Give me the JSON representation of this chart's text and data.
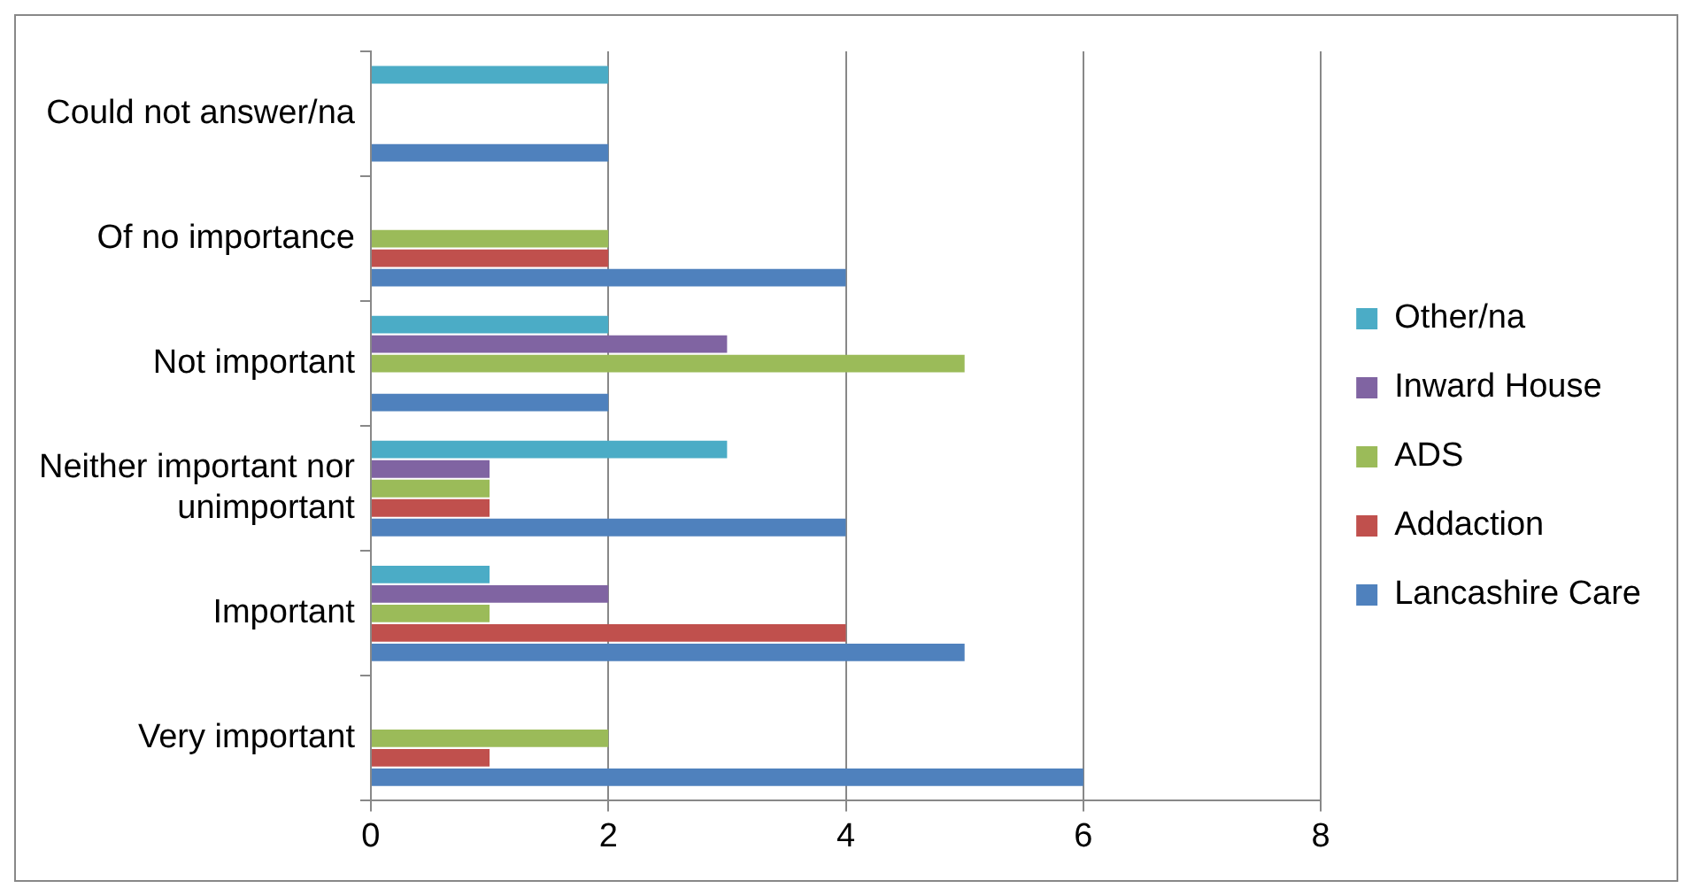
{
  "chart_data": {
    "type": "bar",
    "orientation": "horizontal",
    "categories": [
      "Could not answer/na",
      "Of no importance",
      "Not important",
      "Neither important nor unimportant",
      "Important",
      "Very important"
    ],
    "series": [
      {
        "name": "Other/na",
        "color": "#4bacc6",
        "values": [
          2,
          0,
          2,
          3,
          1,
          0
        ]
      },
      {
        "name": "Inward House",
        "color": "#8064a2",
        "values": [
          0,
          0,
          3,
          1,
          2,
          0
        ]
      },
      {
        "name": "ADS",
        "color": "#9bbb59",
        "values": [
          0,
          2,
          5,
          1,
          1,
          2
        ]
      },
      {
        "name": "Addaction",
        "color": "#c0504d",
        "values": [
          0,
          2,
          0,
          1,
          4,
          1
        ]
      },
      {
        "name": "Lancashire Care",
        "color": "#4f81bd",
        "values": [
          2,
          4,
          2,
          4,
          5,
          6
        ]
      }
    ],
    "xlim": [
      0,
      8
    ],
    "xticks": [
      0,
      2,
      4,
      6,
      8
    ],
    "grid": "x",
    "legend": "right"
  }
}
